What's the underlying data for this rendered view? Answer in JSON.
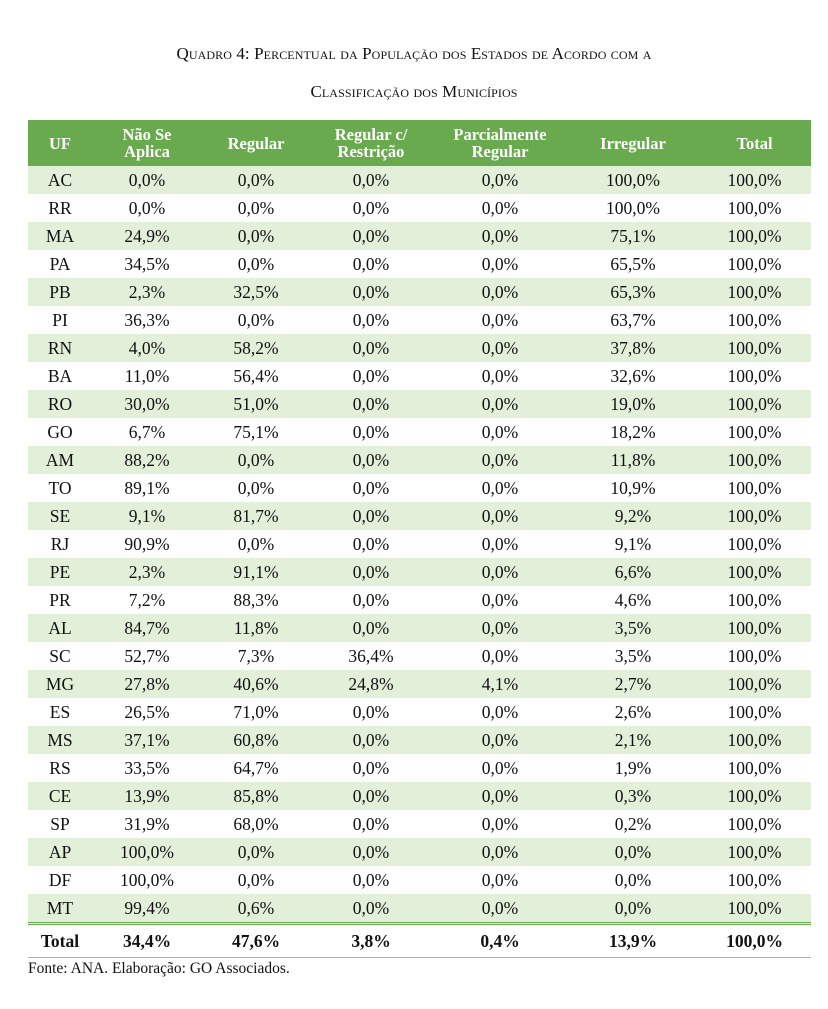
{
  "caption": {
    "line1": "Quadro 4: Percentual da População dos Estados de Acordo com a",
    "line2": "Classificação dos Municípios"
  },
  "table": {
    "headers": {
      "uf": "UF",
      "nao_se_aplica_1": "Não Se",
      "nao_se_aplica_2": "Aplica",
      "regular": "Regular",
      "regular_restricao_1": "Regular c/",
      "regular_restricao_2": "Restrição",
      "parcialmente_1": "Parcialmente",
      "parcialmente_2": "Regular",
      "irregular": "Irregular",
      "total": "Total"
    },
    "rows": [
      [
        "AC",
        "0,0%",
        "0,0%",
        "0,0%",
        "0,0%",
        "100,0%",
        "100,0%"
      ],
      [
        "RR",
        "0,0%",
        "0,0%",
        "0,0%",
        "0,0%",
        "100,0%",
        "100,0%"
      ],
      [
        "MA",
        "24,9%",
        "0,0%",
        "0,0%",
        "0,0%",
        "75,1%",
        "100,0%"
      ],
      [
        "PA",
        "34,5%",
        "0,0%",
        "0,0%",
        "0,0%",
        "65,5%",
        "100,0%"
      ],
      [
        "PB",
        "2,3%",
        "32,5%",
        "0,0%",
        "0,0%",
        "65,3%",
        "100,0%"
      ],
      [
        "PI",
        "36,3%",
        "0,0%",
        "0,0%",
        "0,0%",
        "63,7%",
        "100,0%"
      ],
      [
        "RN",
        "4,0%",
        "58,2%",
        "0,0%",
        "0,0%",
        "37,8%",
        "100,0%"
      ],
      [
        "BA",
        "11,0%",
        "56,4%",
        "0,0%",
        "0,0%",
        "32,6%",
        "100,0%"
      ],
      [
        "RO",
        "30,0%",
        "51,0%",
        "0,0%",
        "0,0%",
        "19,0%",
        "100,0%"
      ],
      [
        "GO",
        "6,7%",
        "75,1%",
        "0,0%",
        "0,0%",
        "18,2%",
        "100,0%"
      ],
      [
        "AM",
        "88,2%",
        "0,0%",
        "0,0%",
        "0,0%",
        "11,8%",
        "100,0%"
      ],
      [
        "TO",
        "89,1%",
        "0,0%",
        "0,0%",
        "0,0%",
        "10,9%",
        "100,0%"
      ],
      [
        "SE",
        "9,1%",
        "81,7%",
        "0,0%",
        "0,0%",
        "9,2%",
        "100,0%"
      ],
      [
        "RJ",
        "90,9%",
        "0,0%",
        "0,0%",
        "0,0%",
        "9,1%",
        "100,0%"
      ],
      [
        "PE",
        "2,3%",
        "91,1%",
        "0,0%",
        "0,0%",
        "6,6%",
        "100,0%"
      ],
      [
        "PR",
        "7,2%",
        "88,3%",
        "0,0%",
        "0,0%",
        "4,6%",
        "100,0%"
      ],
      [
        "AL",
        "84,7%",
        "11,8%",
        "0,0%",
        "0,0%",
        "3,5%",
        "100,0%"
      ],
      [
        "SC",
        "52,7%",
        "7,3%",
        "36,4%",
        "0,0%",
        "3,5%",
        "100,0%"
      ],
      [
        "MG",
        "27,8%",
        "40,6%",
        "24,8%",
        "4,1%",
        "2,7%",
        "100,0%"
      ],
      [
        "ES",
        "26,5%",
        "71,0%",
        "0,0%",
        "0,0%",
        "2,6%",
        "100,0%"
      ],
      [
        "MS",
        "37,1%",
        "60,8%",
        "0,0%",
        "0,0%",
        "2,1%",
        "100,0%"
      ],
      [
        "RS",
        "33,5%",
        "64,7%",
        "0,0%",
        "0,0%",
        "1,9%",
        "100,0%"
      ],
      [
        "CE",
        "13,9%",
        "85,8%",
        "0,0%",
        "0,0%",
        "0,3%",
        "100,0%"
      ],
      [
        "SP",
        "31,9%",
        "68,0%",
        "0,0%",
        "0,0%",
        "0,2%",
        "100,0%"
      ],
      [
        "AP",
        "100,0%",
        "0,0%",
        "0,0%",
        "0,0%",
        "0,0%",
        "100,0%"
      ],
      [
        "DF",
        "100,0%",
        "0,0%",
        "0,0%",
        "0,0%",
        "0,0%",
        "100,0%"
      ],
      [
        "MT",
        "99,4%",
        "0,6%",
        "0,0%",
        "0,0%",
        "0,0%",
        "100,0%"
      ]
    ],
    "total_row": [
      "Total",
      "34,4%",
      "47,6%",
      "3,8%",
      "0,4%",
      "13,9%",
      "100,0%"
    ]
  },
  "source": "Fonte: ANA. Elaboração: GO Associados.",
  "colors": {
    "header_bg": "#6aaa4e",
    "stripe_bg": "#e2efd9"
  }
}
